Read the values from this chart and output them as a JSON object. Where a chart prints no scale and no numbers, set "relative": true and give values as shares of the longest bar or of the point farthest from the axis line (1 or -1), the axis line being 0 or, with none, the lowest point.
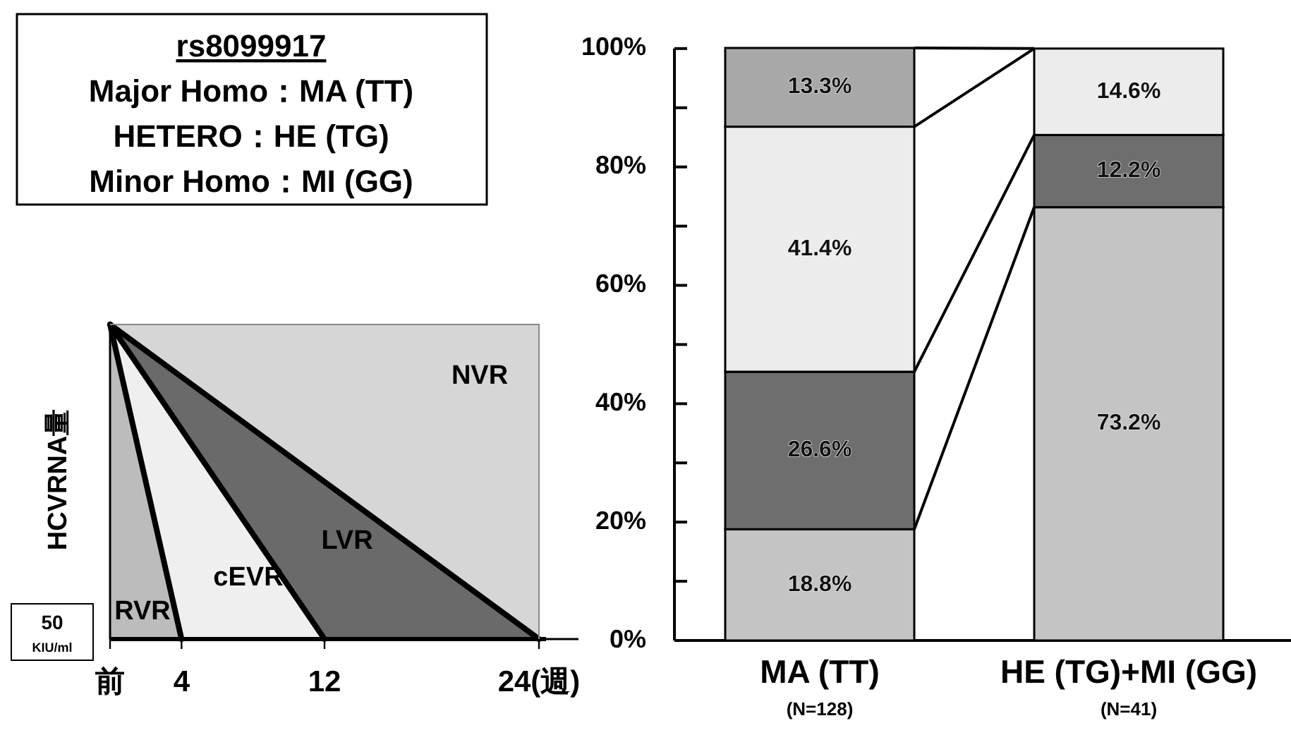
{
  "chart_data": [
    {
      "type": "line",
      "relative": true,
      "ylabel": "HCVRNA量",
      "xlim": [
        0,
        24
      ],
      "xticks": [
        {
          "value": 0,
          "label": "前"
        },
        4,
        12,
        {
          "value": 24,
          "label": "24(週)"
        }
      ],
      "series": [
        {
          "color": "#000000",
          "x": [
            0,
            4
          ],
          "values": [
            1,
            0
          ]
        },
        {
          "color": "#000000",
          "x": [
            0,
            12
          ],
          "values": [
            1,
            0
          ]
        },
        {
          "color": "#000000",
          "x": [
            0,
            24
          ],
          "values": [
            1,
            0
          ]
        }
      ],
      "ref_lines": [
        {
          "axis": "y",
          "value": 0,
          "label": "50 $_{KIU/ml}$"
        }
      ],
      "annotations": [
        "rs8099917",
        "Major Homo：MA (TT)",
        "HETERO：HE (TG)",
        "Minor Homo：MI (GG)",
        "RVR",
        "cEVR",
        "LVR",
        "NVR"
      ]
    },
    {
      "type": "bar",
      "stacked": true,
      "categories": [
        "MA (TT)",
        "HE (TG)+MI (GG)"
      ],
      "annotations": [
        "(N=128)",
        "(N=41)"
      ],
      "ylim": [
        0,
        100.1
      ],
      "yticks": [
        {
          "value": 0,
          "label": "0%"
        },
        {
          "value": 10,
          "label": null
        },
        {
          "value": 20,
          "label": "20%"
        },
        {
          "value": 30,
          "label": null
        },
        {
          "value": 40,
          "label": "40%"
        },
        {
          "value": 50,
          "label": null
        },
        {
          "value": 60,
          "label": "60%"
        },
        {
          "value": 70,
          "label": null
        },
        {
          "value": 80,
          "label": "80%"
        },
        {
          "value": 90,
          "label": null
        },
        {
          "value": 100,
          "label": "100%"
        }
      ],
      "series": [
        {
          "color": "#c4c4c4",
          "values": [
            18.8,
            73.2
          ],
          "value_labels": [
            "18.8%",
            "73.2%"
          ]
        },
        {
          "color": "#6e6e6e",
          "values": [
            26.6,
            12.2
          ],
          "value_labels": [
            "26.6%",
            "12.2%"
          ]
        },
        {
          "color": "#ececec",
          "values": [
            41.4,
            14.6
          ],
          "value_labels": [
            "41.4%",
            "14.6%"
          ]
        },
        {
          "color": "#a8a8a8",
          "values": [
            13.3,
            null
          ],
          "value_labels": [
            "13.3%",
            null
          ]
        }
      ]
    }
  ]
}
